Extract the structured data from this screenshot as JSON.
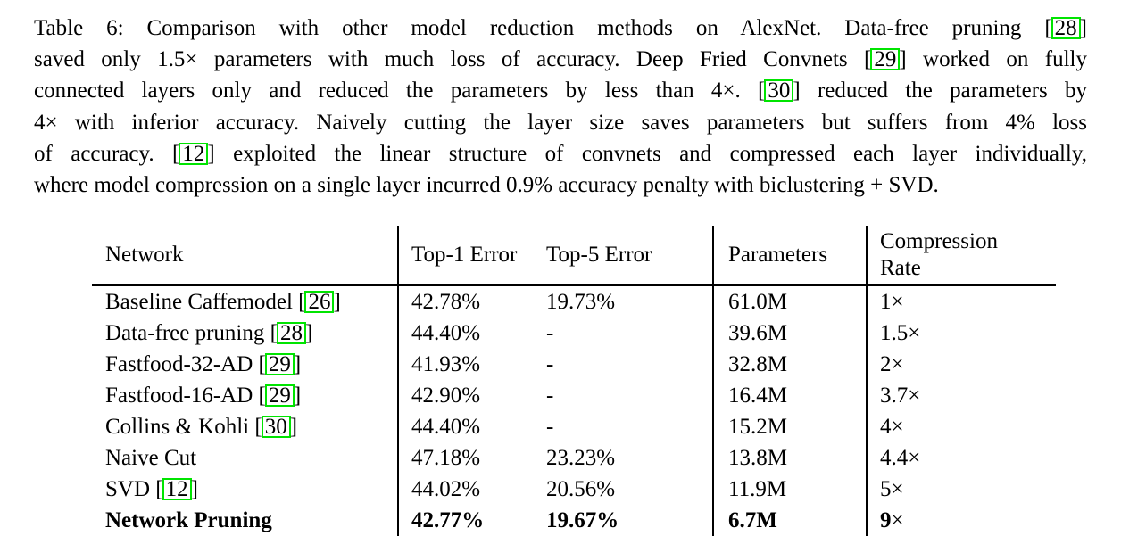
{
  "colors": {
    "citation_box": "#00e400",
    "text": "#000000"
  },
  "caption": {
    "lines": [
      {
        "segments": [
          {
            "t": "Table 6: Comparison with other model reduction methods on AlexNet. Data-free pruning "
          },
          {
            "cite": "28"
          }
        ]
      },
      {
        "segments": [
          {
            "t": "saved only 1.5× parameters with much loss of accuracy. Deep Fried Convnets "
          },
          {
            "cite": "29"
          },
          {
            "t": " worked on fully"
          }
        ]
      },
      {
        "segments": [
          {
            "t": "connected layers only and reduced the parameters by less than 4×. "
          },
          {
            "cite": "30"
          },
          {
            "t": " reduced the parameters by"
          }
        ]
      },
      {
        "segments": [
          {
            "t": "4× with inferior accuracy. Naively cutting the layer size saves parameters but suffers from 4% loss"
          }
        ]
      },
      {
        "segments": [
          {
            "t": "of accuracy. "
          },
          {
            "cite": "12"
          },
          {
            "t": " exploited the linear structure of convnets and compressed each layer individually,"
          }
        ]
      },
      {
        "segments": [
          {
            "t": "where model compression on a single layer incurred 0.9% accuracy penalty with biclustering + SVD."
          }
        ]
      }
    ]
  },
  "table": {
    "headers": [
      "Network",
      "Top-1 Error",
      "Top-5 Error",
      "Parameters",
      "Compression Rate"
    ],
    "rows": [
      {
        "network": "Baseline Caffemodel",
        "cite": "26",
        "top1": "42.78%",
        "top5": "19.73%",
        "params": "61.0M",
        "rate": "1×",
        "bold": false
      },
      {
        "network": "Data-free pruning",
        "cite": "28",
        "top1": "44.40%",
        "top5": "-",
        "params": "39.6M",
        "rate": "1.5×",
        "bold": false
      },
      {
        "network": "Fastfood-32-AD",
        "cite": "29",
        "top1": "41.93%",
        "top5": "-",
        "params": "32.8M",
        "rate": "2×",
        "bold": false
      },
      {
        "network": "Fastfood-16-AD",
        "cite": "29",
        "top1": "42.90%",
        "top5": "-",
        "params": "16.4M",
        "rate": "3.7×",
        "bold": false
      },
      {
        "network": "Collins & Kohli",
        "cite": "30",
        "top1": "44.40%",
        "top5": "-",
        "params": "15.2M",
        "rate": "4×",
        "bold": false
      },
      {
        "network": "Naive Cut",
        "cite": null,
        "top1": "47.18%",
        "top5": "23.23%",
        "params": "13.8M",
        "rate": "4.4×",
        "bold": false
      },
      {
        "network": "SVD",
        "cite": "12",
        "top1": "44.02%",
        "top5": "20.56%",
        "params": "11.9M",
        "rate": "5×",
        "bold": false
      },
      {
        "network": "Network Pruning",
        "cite": null,
        "top1": "42.77%",
        "top5": "19.67%",
        "params": "6.7M",
        "rate": "9×",
        "bold": true
      }
    ]
  }
}
